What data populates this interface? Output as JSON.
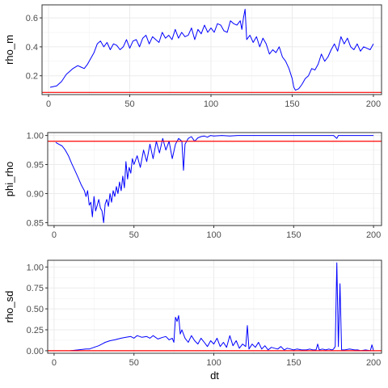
{
  "chart_data": [
    {
      "type": "line",
      "ylabel": "rho_m",
      "xlabel": "",
      "xlim": [
        -4,
        205
      ],
      "ylim": [
        0.07,
        0.69
      ],
      "xticks": [
        "0",
        "50",
        "100",
        "150",
        "200"
      ],
      "yticks": [
        "0.2",
        "0.4",
        "0.6"
      ],
      "hline": 0.085,
      "series": [
        {
          "color": "#0000ff",
          "x": [
            1,
            5,
            8,
            11,
            13,
            15,
            18,
            20,
            22,
            24,
            26,
            28,
            30,
            32,
            34,
            36,
            38,
            40,
            42,
            44,
            46,
            48,
            50,
            52,
            54,
            56,
            58,
            60,
            62,
            64,
            66,
            68,
            70,
            72,
            74,
            76,
            78,
            80,
            82,
            84,
            86,
            88,
            90,
            92,
            94,
            96,
            98,
            100,
            102,
            104,
            106,
            108,
            110,
            112,
            114,
            116,
            118,
            119,
            120,
            121,
            122,
            124,
            126,
            128,
            130,
            132,
            134,
            136,
            138,
            140,
            142,
            144,
            146,
            148,
            150,
            151,
            152,
            154,
            156,
            158,
            160,
            162,
            164,
            166,
            168,
            170,
            172,
            174,
            176,
            178,
            180,
            182,
            184,
            186,
            188,
            190,
            192,
            194,
            196,
            198,
            200
          ],
          "values": [
            0.12,
            0.13,
            0.16,
            0.21,
            0.23,
            0.25,
            0.27,
            0.26,
            0.25,
            0.28,
            0.32,
            0.36,
            0.42,
            0.44,
            0.4,
            0.43,
            0.38,
            0.42,
            0.41,
            0.38,
            0.4,
            0.45,
            0.39,
            0.44,
            0.45,
            0.4,
            0.46,
            0.48,
            0.42,
            0.47,
            0.45,
            0.43,
            0.5,
            0.46,
            0.48,
            0.45,
            0.52,
            0.46,
            0.5,
            0.47,
            0.48,
            0.53,
            0.45,
            0.52,
            0.49,
            0.55,
            0.5,
            0.53,
            0.5,
            0.56,
            0.55,
            0.51,
            0.5,
            0.58,
            0.56,
            0.55,
            0.58,
            0.52,
            0.6,
            0.66,
            0.45,
            0.48,
            0.43,
            0.47,
            0.4,
            0.46,
            0.42,
            0.35,
            0.38,
            0.36,
            0.4,
            0.33,
            0.3,
            0.25,
            0.18,
            0.12,
            0.1,
            0.11,
            0.14,
            0.18,
            0.2,
            0.25,
            0.24,
            0.28,
            0.35,
            0.3,
            0.33,
            0.38,
            0.42,
            0.37,
            0.47,
            0.42,
            0.46,
            0.4,
            0.38,
            0.42,
            0.37,
            0.4,
            0.39,
            0.38,
            0.42
          ]
        }
      ]
    },
    {
      "type": "line",
      "ylabel": "phi_rho",
      "xlabel": "",
      "xlim": [
        -4,
        205
      ],
      "ylim": [
        0.845,
        1.005
      ],
      "xticks": [
        "0",
        "50",
        "100",
        "150",
        "200"
      ],
      "yticks": [
        "0.85",
        "0.90",
        "0.95",
        "1.00"
      ],
      "hline": 0.99,
      "series": [
        {
          "color": "#0000ff",
          "x": [
            1,
            3,
            5,
            7,
            9,
            11,
            13,
            15,
            17,
            19,
            20,
            21,
            22,
            23,
            24,
            25,
            26,
            27,
            28,
            29,
            30,
            31,
            32,
            33,
            34,
            35,
            36,
            37,
            38,
            39,
            40,
            41,
            42,
            43,
            44,
            45,
            46,
            47,
            48,
            49,
            50,
            52,
            54,
            56,
            58,
            60,
            62,
            64,
            66,
            68,
            70,
            72,
            74,
            76,
            78,
            80,
            81,
            82,
            84,
            86,
            88,
            90,
            92,
            94,
            96,
            98,
            100,
            105,
            110,
            115,
            120,
            130,
            140,
            150,
            160,
            170,
            175,
            177,
            178,
            180,
            190,
            200
          ],
          "values": [
            0.988,
            0.985,
            0.982,
            0.975,
            0.965,
            0.952,
            0.94,
            0.928,
            0.915,
            0.905,
            0.895,
            0.905,
            0.88,
            0.885,
            0.86,
            0.895,
            0.87,
            0.88,
            0.89,
            0.875,
            0.87,
            0.85,
            0.882,
            0.89,
            0.878,
            0.9,
            0.885,
            0.905,
            0.895,
            0.912,
            0.9,
            0.92,
            0.905,
            0.93,
            0.91,
            0.955,
            0.925,
            0.945,
            0.935,
            0.96,
            0.95,
            0.965,
            0.945,
            0.975,
            0.955,
            0.985,
            0.96,
            0.99,
            0.97,
            0.995,
            0.975,
            0.99,
            0.96,
            0.985,
            0.995,
            0.99,
            0.94,
            0.985,
            0.995,
            0.998,
            0.99,
            0.996,
            0.998,
            0.999,
            0.997,
            1.0,
            0.999,
            1.0,
            0.999,
            1.0,
            1.0,
            1.0,
            1.0,
            1.0,
            1.0,
            1.0,
            1.0,
            0.995,
            1.0,
            1.0,
            1.0,
            1.0
          ]
        }
      ]
    },
    {
      "type": "line",
      "ylabel": "rho_sd",
      "xlabel": "dt",
      "xlim": [
        -4,
        205
      ],
      "ylim": [
        -0.03,
        1.08
      ],
      "xticks": [
        "0",
        "50",
        "100",
        "150",
        "200"
      ],
      "yticks": [
        "0.00",
        "0.25",
        "0.50",
        "0.75",
        "1.00"
      ],
      "hline": 0.0,
      "series": [
        {
          "color": "#0000ff",
          "x": [
            10,
            15,
            20,
            22,
            25,
            28,
            30,
            32,
            35,
            38,
            40,
            42,
            45,
            48,
            50,
            52,
            55,
            58,
            60,
            62,
            65,
            68,
            70,
            72,
            74,
            75,
            76,
            77,
            78,
            79,
            80,
            82,
            84,
            86,
            88,
            90,
            92,
            94,
            96,
            98,
            100,
            102,
            104,
            106,
            108,
            110,
            112,
            114,
            116,
            118,
            120,
            121,
            122,
            124,
            126,
            128,
            130,
            132,
            134,
            136,
            138,
            140,
            142,
            144,
            146,
            148,
            150,
            152,
            155,
            158,
            160,
            162,
            164,
            165,
            166,
            168,
            170,
            172,
            174,
            175,
            176,
            177,
            178,
            179,
            180,
            182,
            185,
            188,
            190,
            192,
            195,
            198,
            199,
            200
          ],
          "values": [
            0.0,
            0.01,
            0.02,
            0.02,
            0.04,
            0.06,
            0.08,
            0.1,
            0.12,
            0.13,
            0.14,
            0.15,
            0.16,
            0.17,
            0.15,
            0.18,
            0.16,
            0.17,
            0.15,
            0.18,
            0.14,
            0.16,
            0.17,
            0.13,
            0.15,
            0.1,
            0.4,
            0.35,
            0.42,
            0.2,
            0.25,
            0.15,
            0.1,
            0.18,
            0.12,
            0.08,
            0.15,
            0.1,
            0.05,
            0.12,
            0.08,
            0.15,
            0.05,
            0.1,
            0.04,
            0.18,
            0.06,
            0.12,
            0.03,
            0.08,
            0.05,
            0.3,
            0.02,
            0.08,
            0.04,
            0.1,
            0.02,
            0.06,
            0.01,
            0.04,
            0.03,
            0.02,
            0.05,
            0.01,
            0.03,
            0.02,
            0.01,
            0.02,
            0.01,
            0.01,
            0.02,
            0.01,
            0.01,
            0.08,
            0.01,
            0.02,
            0.01,
            0.02,
            0.01,
            0.02,
            0.05,
            1.05,
            0.05,
            0.8,
            0.01,
            0.01,
            0.02,
            0.01,
            0.01,
            0.0,
            0.01,
            0.0,
            0.07,
            0.0
          ]
        }
      ]
    }
  ]
}
